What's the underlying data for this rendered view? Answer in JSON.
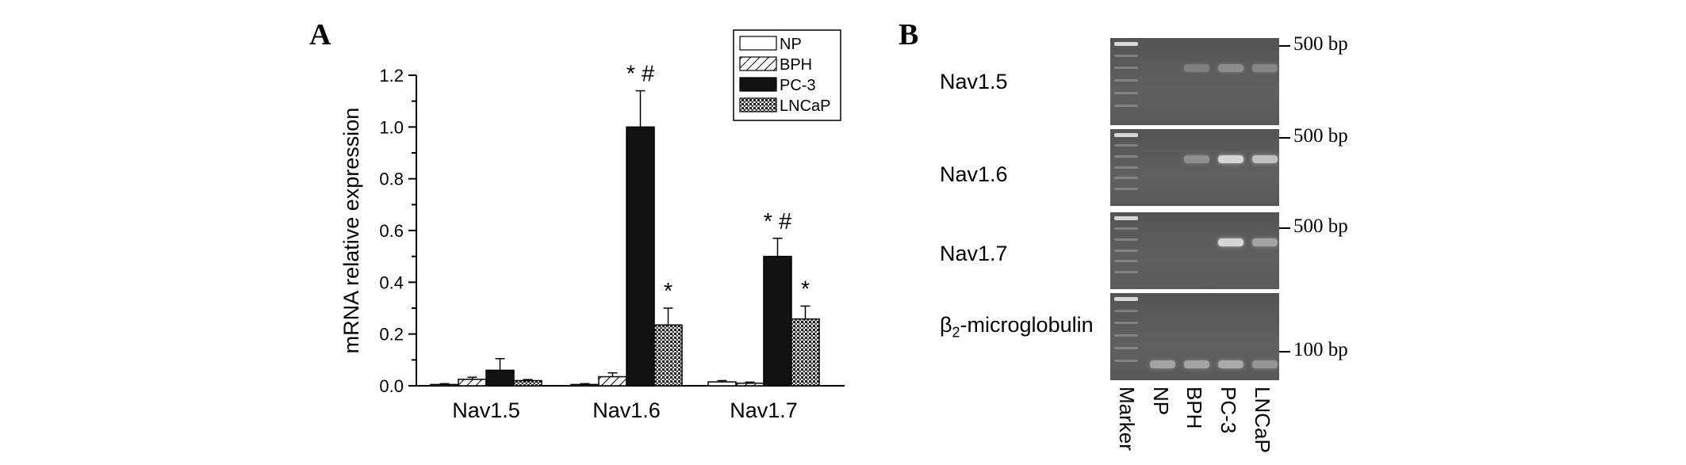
{
  "panels": {
    "a_letter": "A",
    "b_letter": "B"
  },
  "chart_data": {
    "type": "bar",
    "ylabel": "mRNA relative expression",
    "xlabel": "",
    "ylim": [
      0,
      1.2
    ],
    "yticks": [
      "0.0",
      "0.2",
      "0.4",
      "0.6",
      "0.8",
      "1.0",
      "1.2"
    ],
    "categories": [
      "Nav1.5",
      "Nav1.6",
      "Nav1.7"
    ],
    "series": [
      {
        "name": "NP",
        "values": [
          0.005,
          0.005,
          0.015
        ],
        "errors": [
          0.003,
          0.003,
          0.005
        ],
        "pattern": "white"
      },
      {
        "name": "BPH",
        "values": [
          0.025,
          0.035,
          0.01
        ],
        "errors": [
          0.008,
          0.015,
          0.004
        ],
        "pattern": "hatch"
      },
      {
        "name": "PC-3",
        "values": [
          0.06,
          1.0,
          0.5
        ],
        "errors": [
          0.045,
          0.14,
          0.07
        ],
        "pattern": "black"
      },
      {
        "name": "LNCaP",
        "values": [
          0.02,
          0.235,
          0.258
        ],
        "errors": [
          0.004,
          0.065,
          0.05
        ],
        "pattern": "cross"
      }
    ],
    "annotations": [
      {
        "text": "* #",
        "category": "Nav1.6",
        "series": "PC-3"
      },
      {
        "text": "*",
        "category": "Nav1.6",
        "series": "LNCaP"
      },
      {
        "text": "* #",
        "category": "Nav1.7",
        "series": "PC-3"
      },
      {
        "text": "*",
        "category": "Nav1.7",
        "series": "LNCaP"
      }
    ],
    "legend_position": "top-right",
    "grid": false
  },
  "gel": {
    "rows": [
      {
        "label": "Nav1.5",
        "marker": "500 bp"
      },
      {
        "label": "Nav1.6",
        "marker": "500 bp"
      },
      {
        "label": "Nav1.7",
        "marker": "500 bp"
      },
      {
        "label_main": "β",
        "label_sub": "2",
        "label_rest": "-microglobulin",
        "marker": "100 bp"
      }
    ],
    "lanes": [
      "Marker",
      "NP",
      "BPH",
      "PC-3",
      "LNCaP"
    ],
    "band_intensity": [
      [
        0,
        0.25,
        0.35,
        0.3
      ],
      [
        0,
        0.35,
        0.85,
        0.7
      ],
      [
        0,
        0,
        0.85,
        0.5
      ],
      [
        0.5,
        0.5,
        0.55,
        0.4
      ]
    ]
  }
}
